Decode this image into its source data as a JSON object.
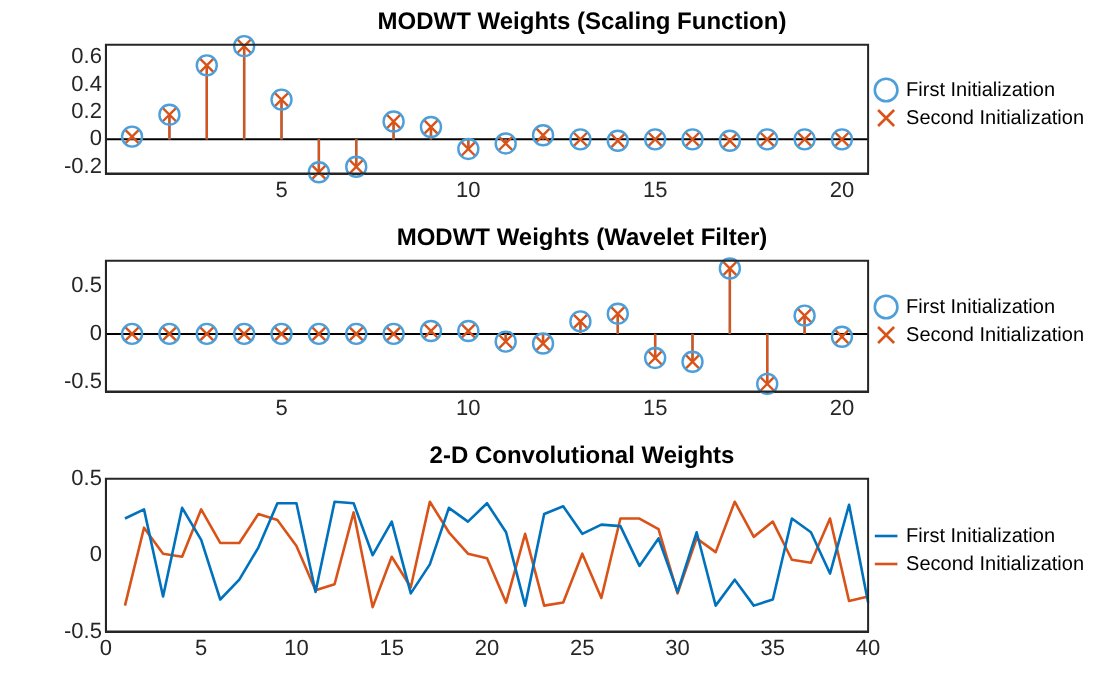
{
  "chart_data": [
    {
      "type": "lollipop",
      "title": "MODWT Weights (Scaling Function)",
      "x": [
        1,
        2,
        3,
        4,
        5,
        6,
        7,
        8,
        9,
        10,
        11,
        12,
        13,
        14,
        15,
        16,
        17,
        18,
        19,
        20
      ],
      "xlim": [
        0.3,
        20.7
      ],
      "xticks": [
        5,
        10,
        15,
        20
      ],
      "ylim": [
        -0.25,
        0.69
      ],
      "yticks": [
        -0.2,
        0,
        0.2,
        0.4,
        0.6
      ],
      "legend": "right",
      "series": [
        {
          "name": "First Initialization",
          "color": "#4d9fd9",
          "marker": "circle",
          "values": [
            0.02,
            0.18,
            0.54,
            0.68,
            0.29,
            -0.24,
            -0.2,
            0.13,
            0.09,
            -0.07,
            -0.03,
            0.03,
            0,
            -0.01,
            0,
            0,
            -0.01,
            0,
            0,
            0
          ]
        },
        {
          "name": "Second Initialization",
          "color": "#d95319",
          "marker": "cross",
          "values": [
            0.02,
            0.18,
            0.54,
            0.68,
            0.29,
            -0.24,
            -0.2,
            0.13,
            0.09,
            -0.07,
            -0.03,
            0.03,
            0,
            -0.01,
            0,
            0,
            -0.01,
            0,
            0,
            0
          ]
        }
      ]
    },
    {
      "type": "lollipop",
      "title": "MODWT Weights (Wavelet Filter)",
      "x": [
        1,
        2,
        3,
        4,
        5,
        6,
        7,
        8,
        9,
        10,
        11,
        12,
        13,
        14,
        15,
        16,
        17,
        18,
        19,
        20
      ],
      "xlim": [
        0.3,
        20.7
      ],
      "xticks": [
        5,
        10,
        15,
        20
      ],
      "ylim": [
        -0.6,
        0.76
      ],
      "yticks": [
        -0.5,
        0,
        0.5
      ],
      "legend": "right",
      "series": [
        {
          "name": "First Initialization",
          "color": "#4d9fd9",
          "marker": "circle",
          "values": [
            0,
            0,
            0,
            0,
            0,
            0,
            0,
            0,
            0.03,
            0.03,
            -0.08,
            -0.1,
            0.13,
            0.21,
            -0.25,
            -0.29,
            0.68,
            -0.52,
            0.19,
            -0.03
          ]
        },
        {
          "name": "Second Initialization",
          "color": "#d95319",
          "marker": "cross",
          "values": [
            0,
            0,
            0,
            0,
            0,
            0,
            0,
            0,
            0.03,
            0.03,
            -0.08,
            -0.1,
            0.13,
            0.21,
            -0.25,
            -0.29,
            0.68,
            -0.52,
            0.19,
            -0.03
          ]
        }
      ]
    },
    {
      "type": "line",
      "title": "2-D Convolutional Weights",
      "x": [
        1,
        2,
        3,
        4,
        5,
        6,
        7,
        8,
        9,
        10,
        11,
        12,
        13,
        14,
        15,
        16,
        17,
        18,
        19,
        20,
        21,
        22,
        23,
        24,
        25,
        26,
        27,
        28,
        29,
        30,
        31,
        32,
        33,
        34,
        35,
        36,
        37,
        38,
        39,
        40
      ],
      "xlim": [
        0,
        40
      ],
      "xticks": [
        0,
        5,
        10,
        15,
        20,
        25,
        30,
        35,
        40
      ],
      "ylim": [
        -0.5,
        0.5
      ],
      "yticks": [
        -0.5,
        0,
        0.5
      ],
      "legend": "right",
      "marker": "none",
      "series": [
        {
          "name": "First Initialization",
          "color": "#0072bd",
          "values": [
            0.24,
            0.3,
            -0.27,
            0.31,
            0.1,
            -0.29,
            -0.16,
            0.05,
            0.34,
            0.34,
            -0.24,
            0.35,
            0.34,
            0,
            0.22,
            -0.25,
            -0.06,
            0.31,
            0.22,
            0.34,
            0.15,
            -0.33,
            0.27,
            0.32,
            0.14,
            0.2,
            0.19,
            -0.07,
            0.11,
            -0.24,
            0.15,
            -0.33,
            -0.16,
            -0.33,
            -0.29,
            0.24,
            0.15,
            -0.12,
            0.33,
            -0.31
          ]
        },
        {
          "name": "Second Initialization",
          "color": "#d95319",
          "values": [
            -0.33,
            0.18,
            0.01,
            -0.01,
            0.3,
            0.08,
            0.08,
            0.27,
            0.23,
            0.06,
            -0.23,
            -0.19,
            0.28,
            -0.34,
            -0.01,
            -0.21,
            0.35,
            0.15,
            0.01,
            -0.02,
            -0.31,
            0.14,
            -0.33,
            -0.31,
            0.01,
            -0.28,
            0.24,
            0.24,
            0.17,
            -0.25,
            0.11,
            0.02,
            0.35,
            0.12,
            0.22,
            -0.03,
            -0.05,
            0.24,
            -0.3,
            -0.27
          ]
        }
      ]
    }
  ]
}
